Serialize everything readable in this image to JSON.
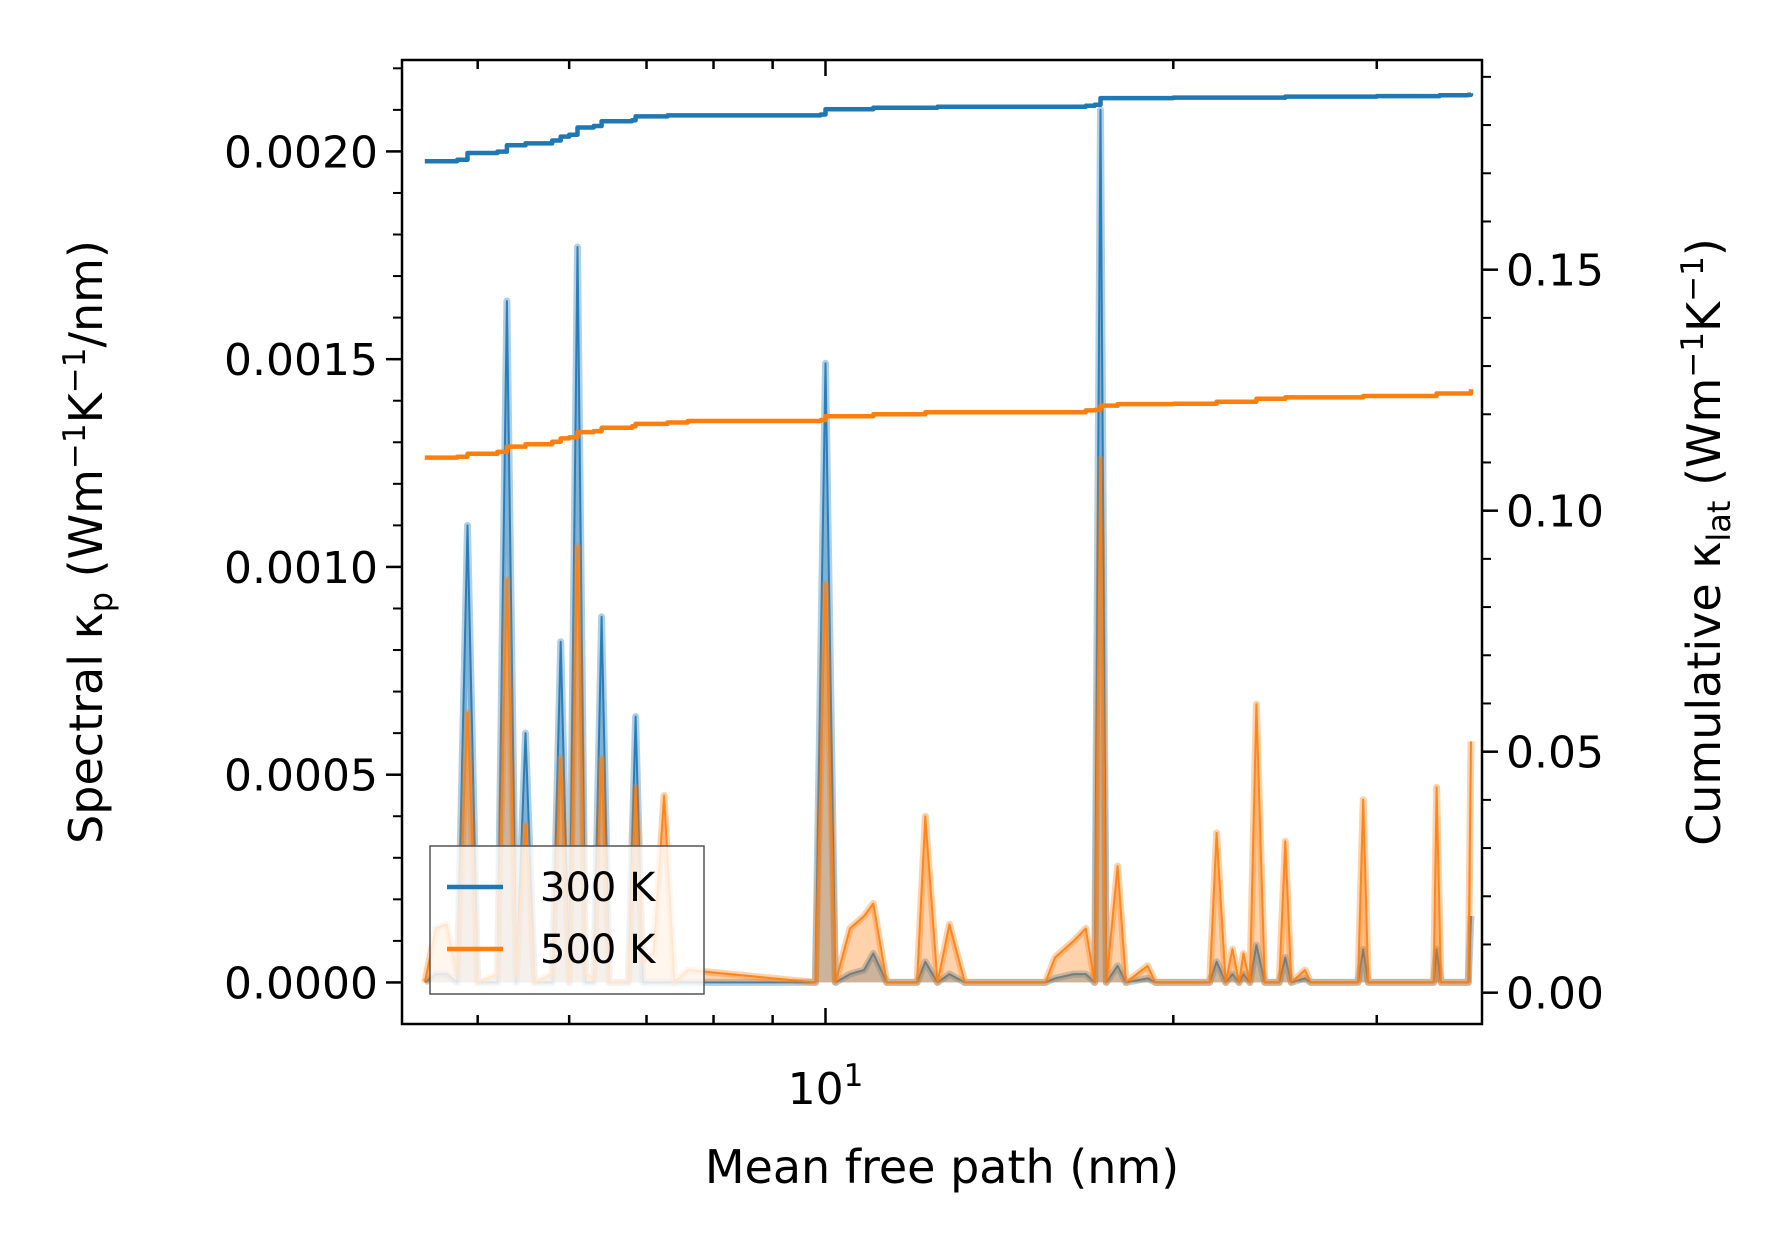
{
  "chart_data": {
    "type": "line",
    "title": "",
    "xlabel": "Mean free path (nm)",
    "xscale": "log",
    "xlim": [
      4.3,
      37
    ],
    "x_ticks": [
      {
        "value": 10,
        "base": "10",
        "exp": "1"
      }
    ],
    "left_axis": {
      "label_main": "Spectral κ",
      "label_sub": "p",
      "label_units_pre": " (Wm",
      "label_units_sup1": "−1",
      "label_units_mid": "K",
      "label_units_sup2": "−1",
      "label_units_post": "/nm)",
      "ylim": [
        -0.0001,
        0.00222
      ],
      "ticks": [
        "0.0000",
        "0.0005",
        "0.0010",
        "0.0015",
        "0.0020"
      ]
    },
    "right_axis": {
      "label_main": "Cumulative κ",
      "label_sub": "lat",
      "label_units_pre": " (Wm",
      "label_units_sup1": "−1",
      "label_units_mid": "K",
      "label_units_sup2": "−1",
      "label_units_post": ")",
      "ylim": [
        -0.0065,
        0.1935
      ],
      "ticks": [
        "0.00",
        "0.05",
        "0.10",
        "0.15"
      ]
    },
    "legend": {
      "position": "lower-left",
      "entries": [
        "300 K",
        "500 K"
      ]
    },
    "series": [
      {
        "name": "300 K",
        "color": "#1f77b4",
        "spectral": [
          [
            4.5,
            0
          ],
          [
            4.6,
            2e-05
          ],
          [
            4.7,
            2e-05
          ],
          [
            4.8,
            0
          ],
          [
            4.9,
            0.0011
          ],
          [
            5.0,
            0
          ],
          [
            5.2,
            0
          ],
          [
            5.3,
            0.00164
          ],
          [
            5.4,
            0
          ],
          [
            5.5,
            0.0006
          ],
          [
            5.6,
            0
          ],
          [
            5.8,
            0
          ],
          [
            5.9,
            0.00082
          ],
          [
            6.0,
            0
          ],
          [
            6.1,
            0.00177
          ],
          [
            6.2,
            0
          ],
          [
            6.3,
            0
          ],
          [
            6.4,
            0.00088
          ],
          [
            6.5,
            0
          ],
          [
            6.75,
            0
          ],
          [
            6.85,
            0.00064
          ],
          [
            6.95,
            0
          ],
          [
            7.4,
            0
          ],
          [
            7.6,
            0
          ],
          [
            9.8,
            0
          ],
          [
            10.0,
            0.00149
          ],
          [
            10.2,
            0
          ],
          [
            10.5,
            2e-05
          ],
          [
            10.8,
            3e-05
          ],
          [
            11.0,
            7e-05
          ],
          [
            11.3,
            0
          ],
          [
            12.0,
            0
          ],
          [
            12.2,
            5e-05
          ],
          [
            12.5,
            0
          ],
          [
            12.8,
            2e-05
          ],
          [
            13.2,
            0
          ],
          [
            15.5,
            0
          ],
          [
            15.8,
            1e-05
          ],
          [
            16.4,
            2e-05
          ],
          [
            16.8,
            2e-05
          ],
          [
            17.1,
            0
          ],
          [
            17.3,
            0.0021
          ],
          [
            17.5,
            0
          ],
          [
            17.9,
            4e-05
          ],
          [
            18.2,
            0
          ],
          [
            19.0,
            1e-05
          ],
          [
            19.3,
            0
          ],
          [
            21.5,
            0
          ],
          [
            21.8,
            5e-05
          ],
          [
            22.2,
            0
          ],
          [
            22.5,
            2e-05
          ],
          [
            22.8,
            0
          ],
          [
            23.0,
            2e-05
          ],
          [
            23.3,
            0
          ],
          [
            23.6,
            9e-05
          ],
          [
            24.0,
            0
          ],
          [
            24.7,
            0
          ],
          [
            25.0,
            6e-05
          ],
          [
            25.3,
            0
          ],
          [
            26.0,
            1e-05
          ],
          [
            26.3,
            0
          ],
          [
            28.9,
            0
          ],
          [
            29.2,
            8e-05
          ],
          [
            29.5,
            0
          ],
          [
            33.6,
            0
          ],
          [
            33.8,
            8e-05
          ],
          [
            34.1,
            0
          ],
          [
            36.0,
            0
          ],
          [
            36.2,
            0.00016
          ]
        ],
        "cumulative": [
          [
            4.5,
            0.1725
          ],
          [
            4.8,
            0.1728
          ],
          [
            4.9,
            0.1742
          ],
          [
            5.2,
            0.1745
          ],
          [
            5.3,
            0.1758
          ],
          [
            5.5,
            0.1762
          ],
          [
            5.8,
            0.1768
          ],
          [
            5.9,
            0.1776
          ],
          [
            6.0,
            0.178
          ],
          [
            6.1,
            0.1795
          ],
          [
            6.3,
            0.1798
          ],
          [
            6.4,
            0.1808
          ],
          [
            6.8,
            0.181
          ],
          [
            6.85,
            0.1818
          ],
          [
            7.3,
            0.182
          ],
          [
            9.9,
            0.1822
          ],
          [
            10.0,
            0.1833
          ],
          [
            11.0,
            0.1836
          ],
          [
            12.5,
            0.1838
          ],
          [
            16.8,
            0.184
          ],
          [
            17.1,
            0.1842
          ],
          [
            17.3,
            0.1856
          ],
          [
            20.0,
            0.1857
          ],
          [
            25.0,
            0.1859
          ],
          [
            30.0,
            0.186
          ],
          [
            34.0,
            0.1862
          ],
          [
            36.0,
            0.1863
          ],
          [
            36.2,
            0.1866
          ]
        ]
      },
      {
        "name": "500 K",
        "color": "#ff7f0e",
        "spectral": [
          [
            4.5,
            0
          ],
          [
            4.6,
            0.00013
          ],
          [
            4.7,
            0.00014
          ],
          [
            4.8,
            2e-05
          ],
          [
            4.9,
            0.00065
          ],
          [
            5.0,
            0
          ],
          [
            5.2,
            2e-05
          ],
          [
            5.3,
            0.00097
          ],
          [
            5.4,
            2e-05
          ],
          [
            5.5,
            0.00038
          ],
          [
            5.6,
            0
          ],
          [
            5.8,
            2e-05
          ],
          [
            5.9,
            0.00054
          ],
          [
            6.0,
            0
          ],
          [
            6.1,
            0.00105
          ],
          [
            6.2,
            2e-05
          ],
          [
            6.3,
            1e-05
          ],
          [
            6.4,
            0.00054
          ],
          [
            6.5,
            0
          ],
          [
            6.75,
            0
          ],
          [
            6.85,
            0.00047
          ],
          [
            6.95,
            5e-05
          ],
          [
            7.1,
            7e-05
          ],
          [
            7.25,
            0.00045
          ],
          [
            7.4,
            0
          ],
          [
            7.6,
            3e-05
          ],
          [
            9.8,
            0
          ],
          [
            10.0,
            0.00096
          ],
          [
            10.2,
            0
          ],
          [
            10.5,
            0.00013
          ],
          [
            10.8,
            0.00016
          ],
          [
            11.0,
            0.00019
          ],
          [
            11.3,
            0
          ],
          [
            12.0,
            0
          ],
          [
            12.2,
            0.0004
          ],
          [
            12.5,
            0
          ],
          [
            12.8,
            0.00014
          ],
          [
            13.2,
            0
          ],
          [
            15.5,
            0
          ],
          [
            15.8,
            6e-05
          ],
          [
            16.4,
            0.0001
          ],
          [
            16.8,
            0.00013
          ],
          [
            17.1,
            0
          ],
          [
            17.3,
            0.00126
          ],
          [
            17.5,
            0
          ],
          [
            17.9,
            0.00028
          ],
          [
            18.2,
            0
          ],
          [
            19.0,
            4e-05
          ],
          [
            19.3,
            0
          ],
          [
            21.5,
            0
          ],
          [
            21.8,
            0.00036
          ],
          [
            22.2,
            0
          ],
          [
            22.5,
            8e-05
          ],
          [
            22.8,
            0
          ],
          [
            23.0,
            7e-05
          ],
          [
            23.3,
            0
          ],
          [
            23.6,
            0.00067
          ],
          [
            24.0,
            0
          ],
          [
            24.7,
            0
          ],
          [
            25.0,
            0.00034
          ],
          [
            25.3,
            0
          ],
          [
            26.0,
            3e-05
          ],
          [
            26.3,
            0
          ],
          [
            28.9,
            0
          ],
          [
            29.2,
            0.00044
          ],
          [
            29.5,
            0
          ],
          [
            33.6,
            0
          ],
          [
            33.8,
            0.00047
          ],
          [
            34.1,
            0
          ],
          [
            36.0,
            0
          ],
          [
            36.2,
            0.00058
          ]
        ],
        "cumulative": [
          [
            4.5,
            0.111
          ],
          [
            4.8,
            0.1112
          ],
          [
            4.9,
            0.1118
          ],
          [
            5.2,
            0.1122
          ],
          [
            5.3,
            0.1133
          ],
          [
            5.5,
            0.1138
          ],
          [
            5.8,
            0.1143
          ],
          [
            5.9,
            0.115
          ],
          [
            6.0,
            0.1152
          ],
          [
            6.1,
            0.1163
          ],
          [
            6.3,
            0.1165
          ],
          [
            6.4,
            0.1172
          ],
          [
            6.8,
            0.1175
          ],
          [
            6.85,
            0.118
          ],
          [
            7.3,
            0.1183
          ],
          [
            7.6,
            0.1186
          ],
          [
            9.9,
            0.1188
          ],
          [
            10.0,
            0.1196
          ],
          [
            11.0,
            0.12
          ],
          [
            12.2,
            0.1204
          ],
          [
            16.8,
            0.1208
          ],
          [
            17.1,
            0.1209
          ],
          [
            17.3,
            0.1218
          ],
          [
            17.9,
            0.1221
          ],
          [
            20.0,
            0.1222
          ],
          [
            21.8,
            0.1226
          ],
          [
            23.6,
            0.1232
          ],
          [
            25.0,
            0.1235
          ],
          [
            29.2,
            0.1238
          ],
          [
            33.8,
            0.1243
          ],
          [
            36.0,
            0.1243
          ],
          [
            36.2,
            0.1252
          ]
        ]
      }
    ]
  }
}
